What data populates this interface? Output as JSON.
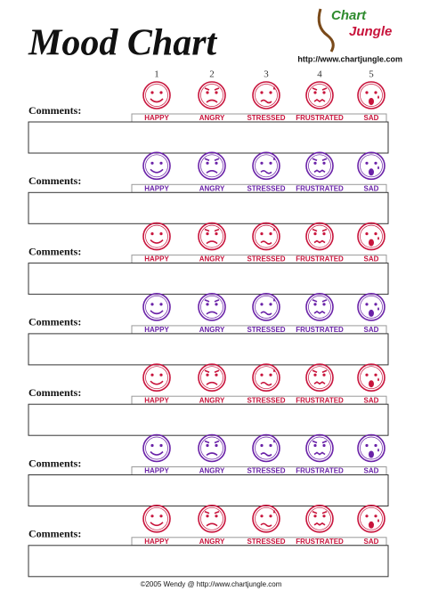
{
  "header": {
    "title": "Mood Chart",
    "logo_top": "Chart",
    "logo_bottom": "Jungle",
    "url": "http://www.chartjungle.com"
  },
  "scale": [
    1,
    2,
    3,
    4,
    5
  ],
  "moods": [
    "HAPPY",
    "ANGRY",
    "STRESSED",
    "FRUSTRATED",
    "SAD"
  ],
  "rows": [
    {
      "label": "Comments:",
      "color": "#c8143c"
    },
    {
      "label": "Comments:",
      "color": "#6a22a8"
    },
    {
      "label": "Comments:",
      "color": "#c8143c"
    },
    {
      "label": "Comments:",
      "color": "#6a22a8"
    },
    {
      "label": "Comments:",
      "color": "#c8143c"
    },
    {
      "label": "Comments:",
      "color": "#6a22a8"
    },
    {
      "label": "Comments:",
      "color": "#c8143c"
    }
  ],
  "footer": "©2005 Wendy @ http://www.chartjungle.com"
}
